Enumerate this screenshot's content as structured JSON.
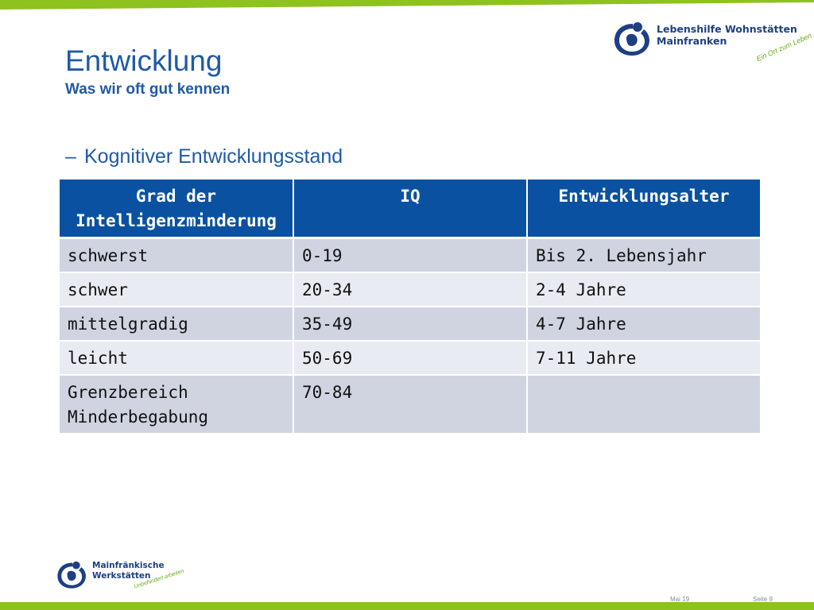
{
  "header": {
    "title": "Entwicklung",
    "subtitle": "Was wir oft gut kennen"
  },
  "bullet": {
    "dash": "–",
    "text": "Kognitiver Entwicklungsstand"
  },
  "table": {
    "headers": [
      "Grad der Intelligenzminderung",
      "IQ",
      "Entwicklungsalter"
    ],
    "rows": [
      [
        "schwerst",
        "0-19",
        "Bis 2. Lebensjahr"
      ],
      [
        "schwer",
        "20-34",
        "2-4 Jahre"
      ],
      [
        "mittelgradig",
        "35-49",
        "4-7 Jahre"
      ],
      [
        "leicht",
        "50-69",
        "7-11 Jahre"
      ],
      [
        "Grenzbereich Minderbegabung",
        "70-84",
        ""
      ]
    ]
  },
  "logo_top": {
    "name": "Lebenshilfe Wohnstätten\nMainfranken",
    "tagline": "Ein Ort zum Leben",
    "icon": "lebenshilfe-logo-icon"
  },
  "logo_bottom": {
    "name": "Mainfränkische\nWerkstätten",
    "tagline": "Unbehindert arbeiten",
    "icon": "lebenshilfe-logo-icon"
  },
  "footer": {
    "date": "Mai 19",
    "page": "Seite 9"
  },
  "colors": {
    "accent_green": "#8dc21f",
    "title_blue": "#1f5aa6",
    "table_header": "#0a52a1",
    "row_odd": "#cfd4e0",
    "row_even": "#e8ebf1",
    "logo_navy": "#1e3f83"
  }
}
